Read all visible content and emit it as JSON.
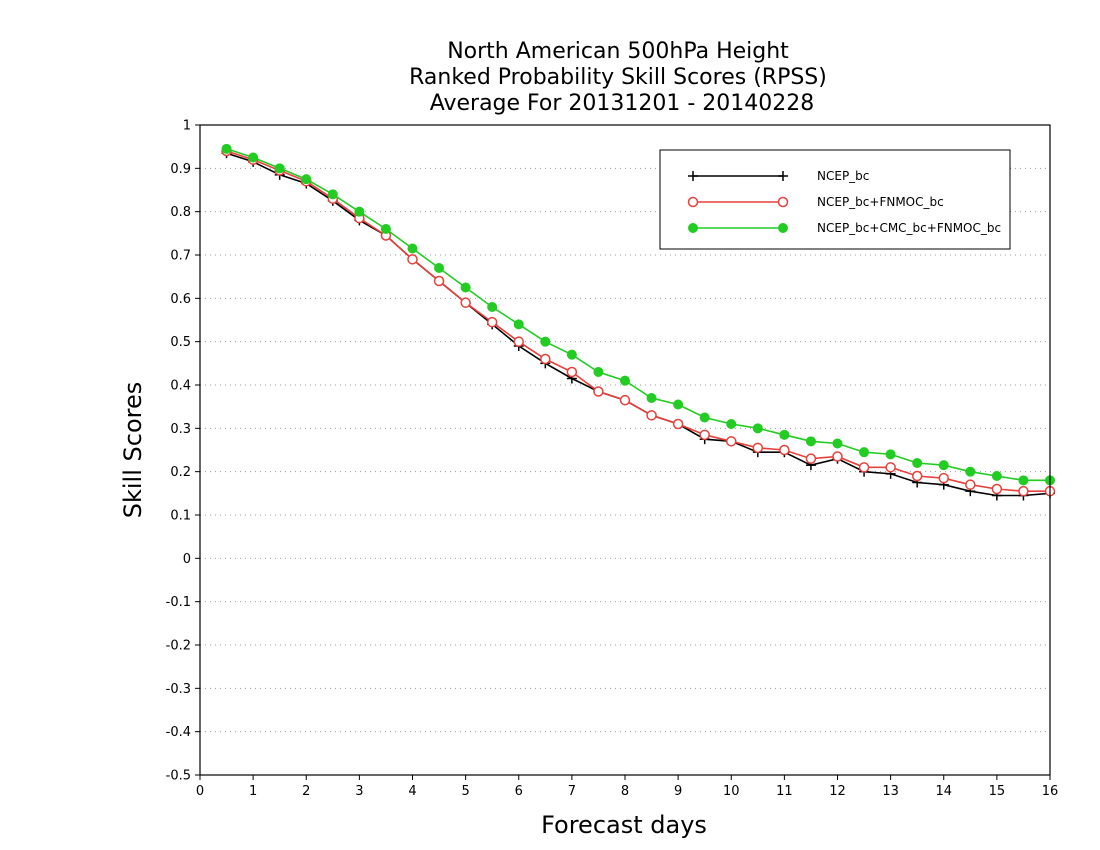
{
  "chart_data": {
    "type": "line",
    "title_lines": [
      "North American 500hPa Height",
      "Ranked Probability Skill Scores (RPSS)",
      "Average For 20131201 - 20140228"
    ],
    "xlabel": "Forecast days",
    "ylabel": "Skill Scores",
    "xlim": [
      0,
      16
    ],
    "ylim": [
      -0.5,
      1
    ],
    "x_ticks": [
      "0",
      "1",
      "2",
      "3",
      "4",
      "5",
      "6",
      "7",
      "8",
      "9",
      "10",
      "11",
      "12",
      "13",
      "14",
      "15",
      "16"
    ],
    "y_ticks": [
      "-0.5",
      "-0.4",
      "-0.3",
      "-0.2",
      "-0.1",
      "0",
      "0.1",
      "0.2",
      "0.3",
      "0.4",
      "0.5",
      "0.6",
      "0.7",
      "0.8",
      "0.9",
      "1"
    ],
    "grid": "horizontal dotted",
    "legend_position": "top-right",
    "x": [
      0.5,
      1,
      1.5,
      2,
      2.5,
      3,
      3.5,
      4,
      4.5,
      5,
      5.5,
      6,
      6.5,
      7,
      7.5,
      8,
      8.5,
      9,
      9.5,
      10,
      10.5,
      11,
      11.5,
      12,
      12.5,
      13,
      13.5,
      14,
      14.5,
      15,
      15.5,
      16
    ],
    "series": [
      {
        "name": "NCEP_bc",
        "color": "#000000",
        "marker": "plus",
        "values": [
          0.935,
          0.915,
          0.885,
          0.865,
          0.825,
          0.78,
          0.745,
          0.69,
          0.64,
          0.59,
          0.54,
          0.49,
          0.45,
          0.415,
          0.385,
          0.365,
          0.33,
          0.31,
          0.275,
          0.27,
          0.245,
          0.245,
          0.215,
          0.23,
          0.2,
          0.195,
          0.175,
          0.17,
          0.155,
          0.145,
          0.145,
          0.15
        ]
      },
      {
        "name": "NCEP_bc+FNMOC_bc",
        "color": "#e8403a",
        "marker": "open-circle",
        "values": [
          0.94,
          0.92,
          0.895,
          0.87,
          0.83,
          0.785,
          0.745,
          0.69,
          0.64,
          0.59,
          0.545,
          0.5,
          0.46,
          0.43,
          0.385,
          0.365,
          0.33,
          0.31,
          0.285,
          0.27,
          0.255,
          0.25,
          0.23,
          0.235,
          0.21,
          0.21,
          0.19,
          0.185,
          0.17,
          0.16,
          0.155,
          0.155
        ]
      },
      {
        "name": "NCEP_bc+CMC_bc+FNMOC_bc",
        "color": "#22cc22",
        "marker": "filled-circle",
        "values": [
          0.945,
          0.925,
          0.9,
          0.875,
          0.84,
          0.8,
          0.76,
          0.715,
          0.67,
          0.625,
          0.58,
          0.54,
          0.5,
          0.47,
          0.43,
          0.41,
          0.37,
          0.355,
          0.325,
          0.31,
          0.3,
          0.285,
          0.27,
          0.265,
          0.245,
          0.24,
          0.22,
          0.215,
          0.2,
          0.19,
          0.18,
          0.18
        ]
      }
    ]
  }
}
